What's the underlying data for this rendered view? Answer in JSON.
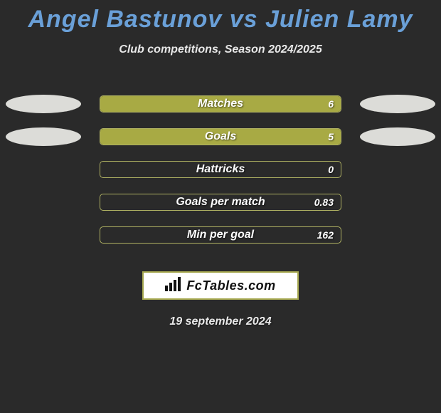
{
  "header": {
    "title": "Angel Bastunov vs Julien Lamy",
    "subtitle": "Club competitions, Season 2024/2025",
    "title_color": "#6aa0d8"
  },
  "chart": {
    "type": "bar",
    "track_width": 340,
    "track_border_color": "#aeb062",
    "fill_color": "#a8aa44",
    "label_color": "#ffffff",
    "value_color": "#ffffff",
    "background_color": "#2a2a2a",
    "ellipse_color": "#dcdcd8",
    "rows": [
      {
        "label": "Matches",
        "value_text": "6",
        "fill_pct": 100,
        "show_ellipses": true
      },
      {
        "label": "Goals",
        "value_text": "5",
        "fill_pct": 100,
        "show_ellipses": true
      },
      {
        "label": "Hattricks",
        "value_text": "0",
        "fill_pct": 0,
        "show_ellipses": false
      },
      {
        "label": "Goals per match",
        "value_text": "0.83",
        "fill_pct": 0,
        "show_ellipses": false
      },
      {
        "label": "Min per goal",
        "value_text": "162",
        "fill_pct": 0,
        "show_ellipses": false
      }
    ]
  },
  "branding": {
    "text": "FcTables.com",
    "box_border_color": "#a8aa52",
    "box_bg_color": "#ffffff",
    "text_color": "#111111"
  },
  "footer": {
    "date": "19 september 2024"
  }
}
